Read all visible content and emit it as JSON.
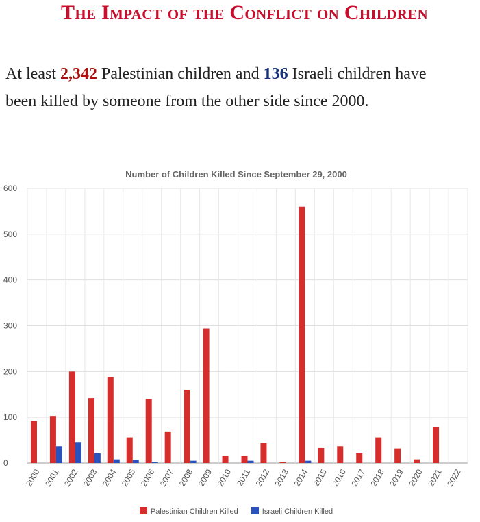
{
  "header": {
    "title": "The Impact of the Conflict on Children"
  },
  "intro": {
    "part1": "At least ",
    "palestinian_count": "2,342",
    "part2": " Palestinian children and ",
    "israeli_count": "136",
    "part3": " Israeli children have been killed by someone from the other side since 2000."
  },
  "colors": {
    "palestinian": "#d62d2d",
    "israeli": "#2a52be",
    "title": "#c8102e"
  },
  "chart_data": {
    "type": "bar",
    "title": "Number of Children Killed Since September 29, 2000",
    "categories": [
      "2000",
      "2001",
      "2002",
      "2003",
      "2004",
      "2005",
      "2006",
      "2007",
      "2008",
      "2009",
      "2010",
      "2011",
      "2012",
      "2013",
      "2014",
      "2015",
      "2016",
      "2017",
      "2018",
      "2019",
      "2020",
      "2021",
      "2022"
    ],
    "series": [
      {
        "name": "Palestinian Children Killed",
        "color": "#d62d2d",
        "values": [
          92,
          103,
          200,
          142,
          188,
          56,
          140,
          69,
          160,
          294,
          16,
          16,
          44,
          3,
          560,
          33,
          37,
          21,
          56,
          32,
          8,
          78,
          0
        ]
      },
      {
        "name": "Israeli Children Killed",
        "color": "#2a52be",
        "values": [
          0,
          37,
          46,
          21,
          8,
          7,
          3,
          0,
          5,
          0,
          0,
          5,
          0,
          0,
          5,
          0,
          0,
          0,
          0,
          0,
          0,
          0,
          0
        ]
      }
    ],
    "yticks": [
      0,
      100,
      200,
      300,
      400,
      500,
      600
    ],
    "ylim": [
      0,
      600
    ],
    "grid": true,
    "legend": "bottom"
  }
}
